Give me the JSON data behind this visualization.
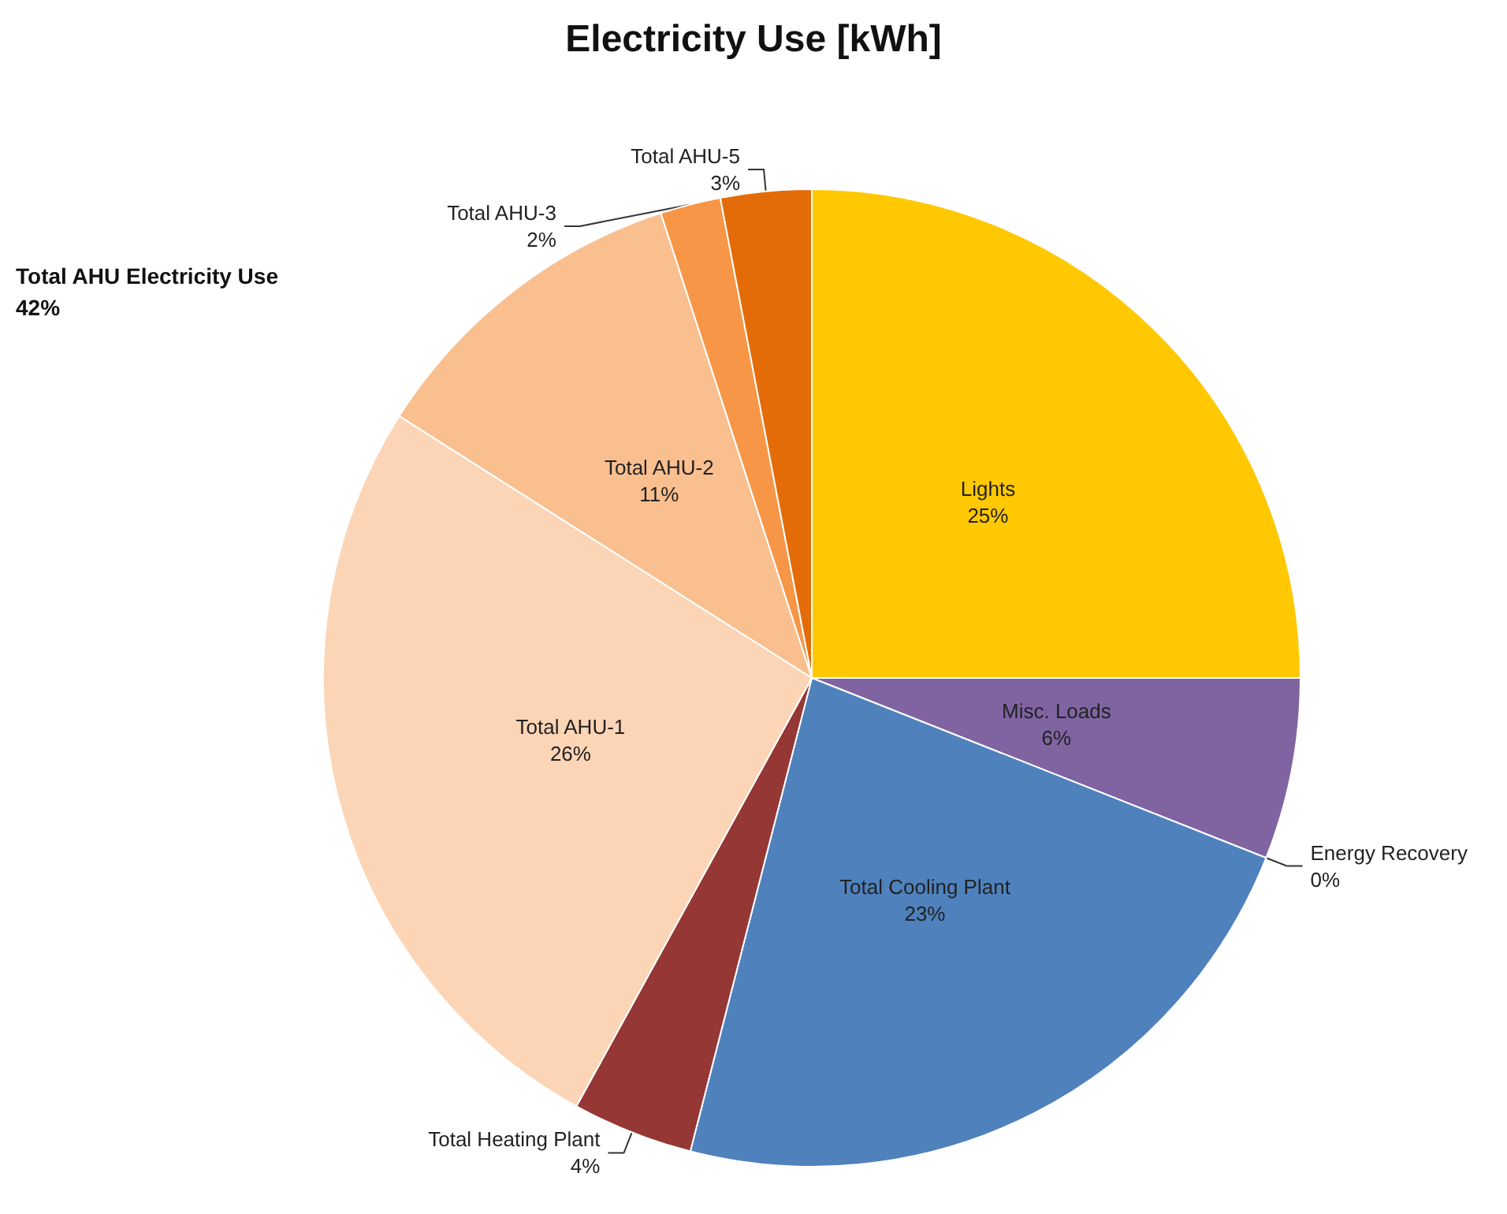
{
  "chart_data": {
    "type": "pie",
    "title": "Electricity Use [kWh]",
    "categories": [
      "Lights",
      "Misc. Loads",
      "Energy Recovery",
      "Total Cooling Plant",
      "Total Heating Plant",
      "Total AHU-1",
      "Total AHU-2",
      "Total AHU-3",
      "Total AHU-5"
    ],
    "values": [
      25,
      6,
      0,
      23,
      4,
      26,
      11,
      2,
      3
    ],
    "value_labels": [
      "25%",
      "6%",
      "0%",
      "23%",
      "4%",
      "26%",
      "11%",
      "2%",
      "3%"
    ],
    "colors": [
      "#ffc800",
      "#8064a2",
      "#4bacc6",
      "#4f81bd",
      "#953735",
      "#fbd5b5",
      "#f9bf8f",
      "#f79646",
      "#e36c09"
    ],
    "annotations": [
      "Total AHU Electricity Use\n42%"
    ]
  }
}
